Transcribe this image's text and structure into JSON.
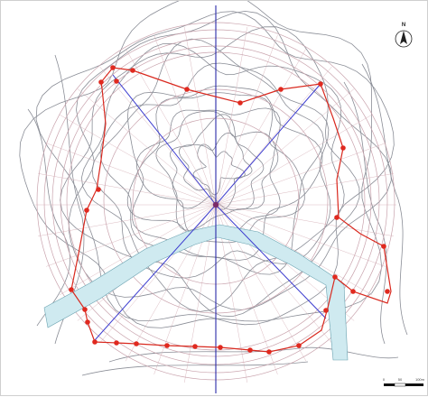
{
  "north_arrow": {
    "label": "N",
    "icon": "north-arrow-icon"
  },
  "scale_bar": {
    "labels": [
      "0",
      "50",
      "100m"
    ]
  },
  "colors": {
    "background": "#ffffff",
    "boundary": "#d9281e",
    "boundary_nodes": "#e0291f",
    "axes": "#3c3ccf",
    "center_axis": "#2a2aa8",
    "rings": "#c9a3ad",
    "radials": "#d2aab2",
    "contours": "#8a8d96",
    "water": "#cfeaf0",
    "water_edge": "#6aa2b0"
  },
  "layers": [
    "contour-lines",
    "concentric-rings",
    "radial-lines",
    "water-channel",
    "sight-axes",
    "site-boundary",
    "boundary-nodes"
  ]
}
